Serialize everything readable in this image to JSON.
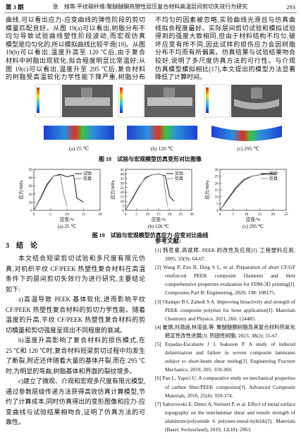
{
  "header": {
    "issue": "第 3 期",
    "running_title": "张　旭等:平纹碳纤维/聚醚醚酮热塑性层压复合材料高温层间剪切失效行为研究",
    "page": "293"
  },
  "intro_left": [
    "曲线,可以看出应力-应变曲线的弹性阶段的剪切",
    "模量匹配良好。从图 19(a)可以看出,树脂分布不",
    "均匀导致试验曲线塑性阶段波动,而宏观仿真",
    "模型是均匀化的,所以模拟曲线比较平滑[19]。从图",
    "19(b)可以看出,温度升高至 120 ℃后,由于复合",
    "材料中树脂出现软化,拟合程度明显比常温好;从",
    "图 19(c)可以看出,温度升至 295 ℃后,复合材料",
    "的树脂受高温软化力学性能下降严重,树脂分布"
  ],
  "intro_right": [
    "不均匀的因素被忽略,实验曲线光滑且与仿真曲",
    "线拟合程度最好。实际层间剪切试验和模拟试验",
    "得到的强度大致相同,但由于材料结构不均匀,破",
    "坏应变有所不同,因此试样的损伤应力会因树脂",
    "分布不均而有所偏离。仿真结果与试验结果吻合",
    "较好,说明了多尺度仿真方法的可行性。与介观",
    "仿真模型模拟相比[17],本文提出的模型方法显著",
    "降低了计算时间。"
  ],
  "figure18": {
    "panels": [
      "(a) 25 ℃",
      "(b) 120 ℃",
      "(c) 295 ℃"
    ],
    "caption": "图 18　试验与宏观模型仿真变形对比图像"
  },
  "chart_data": [
    {
      "type": "line",
      "caption": "(a) 25 ℃",
      "x_label": "应变/%",
      "y_label": "应力/MPa",
      "xlim": [
        0,
        20
      ],
      "ylim": [
        0,
        50
      ],
      "xticks": [
        0,
        5,
        10,
        15,
        20
      ],
      "yticks": [
        0,
        10,
        20,
        30,
        40,
        50
      ],
      "series": [
        {
          "name": "试验",
          "color": "#000000",
          "x": [
            0,
            2,
            4,
            6,
            8,
            10,
            12,
            13,
            15
          ],
          "values": [
            0,
            15,
            32,
            42,
            44,
            41,
            43,
            15,
            10
          ]
        },
        {
          "name": "仿真",
          "color": "#808080",
          "x": [
            0,
            2,
            4,
            6,
            8,
            9,
            10
          ],
          "values": [
            0,
            14,
            30,
            42,
            43,
            20,
            5
          ]
        }
      ]
    },
    {
      "type": "line",
      "caption": "(b) 120 ℃",
      "x_label": "应变/%",
      "y_label": "应力/MPa",
      "xlim": [
        0,
        30
      ],
      "ylim": [
        0,
        45
      ],
      "xticks": [
        0,
        5,
        10,
        15,
        20,
        25,
        30
      ],
      "yticks": [
        0,
        5,
        10,
        15,
        20,
        25,
        30,
        35,
        40,
        45
      ],
      "series": [
        {
          "name": "实验",
          "color": "#000000",
          "x": [
            0,
            3,
            6,
            9,
            12,
            15,
            18,
            20,
            22
          ],
          "values": [
            0,
            12,
            25,
            36,
            39,
            40,
            38,
            15,
            10
          ]
        },
        {
          "name": "仿真",
          "color": "#808080",
          "x": [
            0,
            3,
            6,
            9,
            12,
            15,
            17,
            19
          ],
          "values": [
            0,
            13,
            26,
            35,
            39,
            40,
            39,
            5
          ]
        }
      ]
    },
    {
      "type": "line",
      "caption": "(c) 295 ℃",
      "x_label": "应变/%",
      "y_label": "应力/MPa",
      "xlim": [
        0,
        25
      ],
      "ylim": [
        0,
        30
      ],
      "xticks": [
        0,
        5,
        10,
        15,
        20,
        25
      ],
      "yticks": [
        0,
        5,
        10,
        15,
        20,
        25,
        30
      ],
      "series": [
        {
          "name": "实验",
          "color": "#000000",
          "x": [
            0,
            3,
            6,
            9,
            12,
            15,
            18,
            21
          ],
          "values": [
            0,
            8,
            16,
            22,
            25,
            26,
            27,
            27
          ]
        },
        {
          "name": "仿真",
          "color": "#808080",
          "x": [
            0,
            3,
            6,
            9,
            12,
            15,
            18,
            21
          ],
          "values": [
            0,
            9,
            17,
            23,
            25,
            26,
            26.5,
            26
          ]
        }
      ]
    }
  ],
  "figure19": {
    "caption": "图 19　试验与宏观模型仿真应力-应变对比曲线"
  },
  "section3": {
    "heading": "3　结　论",
    "paragraphs": [
      [
        "本文结合短梁剪切试验和多尺度有限元仿",
        "真,对机织平纹 CF/PEEK 热塑性复合材料在高温",
        "条件下的层间剪切失效行为进行研究,主要结论",
        "如下:"
      ],
      [
        "a)高温导致 PEEK 基体软化,进而影响平纹",
        "CF/PEEK 热塑性复合材料的剪切力学性能。随着",
        "温度的升高,平纹 CF/PEEK 热塑性复合材料的剪",
        "切模量和剪切强度呈现出不同程度的衰减。"
      ],
      [
        "b)温度升高影响了复合材料的损伤模式,在",
        "25 ℃和 120 ℃时,复合材料短梁剪切过程中均发生",
        "了断裂,附近还伴随着大量的基体开裂,而在 295 ℃",
        "时,为明显的弯曲,树脂基体和界面的裂纹增多。"
      ],
      [
        "c)建立了微观、介观和宏观多尺度有限元模型,",
        "通过参数层级传递方法获得高效仿真计算模型,节",
        "约了计算成本,同时仿真得出的变形图像和应力-应",
        "变曲线与试验结果相吻合,证明了仿真方法的可",
        "靠性。"
      ]
    ]
  },
  "references": {
    "heading": "参考文献:",
    "items": [
      "[1] 韩哲睿,高斌辉. PEEK 的改性及应用[J]. 工程塑料应用, 2005, 33(9): 64-67.",
      "[2] Wang P, Zou B, Ding S L, et al. Preparation of short CF/GF reinforced PEEK composite filaments and their comprehensive properties evaluation for FDM-3D printing[J]. Composites Part B: Engineering, 2020, 198: 108175.",
      "[3] Oladapo B I, Zahedi S A. Improving bioactivity and strength of PEEK composite polymer for bone application[J]. Materials Chemistry and Physics, 2021, 266: 124485.",
      "[4] 崔炯,刘渤涵,林道益,等. 聚醚醚酮树脂及其复合材料热氧化稳定性改性进展[J]. 热固性树脂, 2023, 38(2): 55-67.",
      "[5] Espadas-Escalante J J, Isaksson P. A study of induced delamination and failure in woven composite laminates subject to short-beam shear testing[J]. Engineering Fracture Mechanics, 2019, 205: 359-369.",
      "[6] Pan L, Yapici U. A comparative study on mechanical properties of carbon fiber/PEEK composites[J]. Advanced Composite Materials, 2016, 25(4): 359-374.",
      "[7] Saborowski E, Dittes A, Steinert P, et al. Effect of metal surface topography on the interlaminar shear and tensile strength of aluminum/polyamide 6 polymer-metal-hybrids[J]. Materials (Basel, Switzerland), 2019, 12(18): 2963."
    ]
  }
}
